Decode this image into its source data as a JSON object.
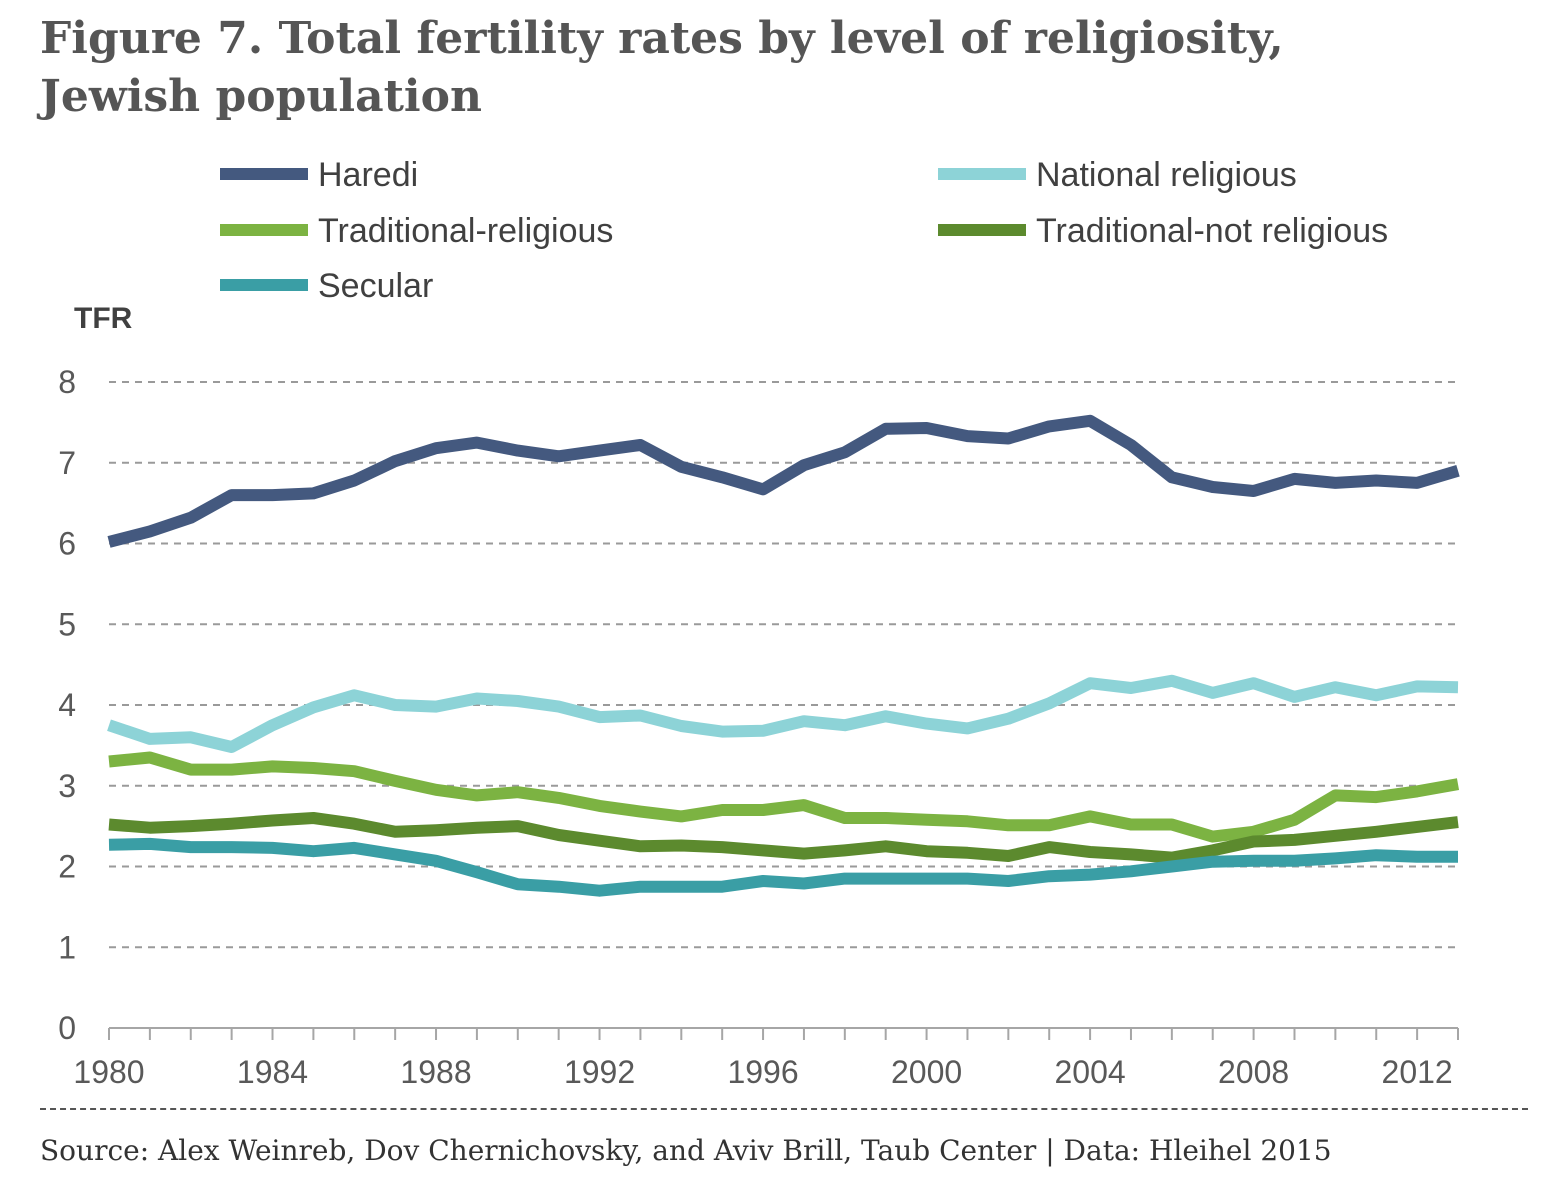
{
  "header": {
    "title_line1": "Figure 7. Total fertility rates by level of religiosity,",
    "title_line2": "Jewish population"
  },
  "footer": {
    "source": "Source: Alex Weinreb, Dov Chernichovsky, and Aviv Brill, Taub Center | Data: Hleihel 2015"
  },
  "chart_data": {
    "type": "line",
    "title": "Figure 7. Total fertility rates by level of religiosity, Jewish population",
    "ylabel": "TFR",
    "xlabel": "",
    "ylim": [
      0,
      8
    ],
    "xlim": [
      1980,
      2013
    ],
    "yticks": [
      0,
      1,
      2,
      3,
      4,
      5,
      6,
      7,
      8
    ],
    "xticks": [
      1980,
      1984,
      1988,
      1992,
      1996,
      2000,
      2004,
      2008,
      2012
    ],
    "grid": "horizontal dashed",
    "legend_position": "top",
    "x": [
      1980,
      1981,
      1982,
      1983,
      1984,
      1985,
      1986,
      1987,
      1988,
      1989,
      1990,
      1991,
      1992,
      1993,
      1994,
      1995,
      1996,
      1997,
      1998,
      1999,
      2000,
      2001,
      2002,
      2003,
      2004,
      2005,
      2006,
      2007,
      2008,
      2009,
      2010,
      2011,
      2012,
      2013
    ],
    "series": [
      {
        "name": "Haredi",
        "color": "#44597f",
        "values": [
          6.02,
          6.15,
          6.32,
          6.6,
          6.6,
          6.62,
          6.78,
          7.02,
          7.18,
          7.25,
          7.15,
          7.08,
          7.15,
          7.22,
          6.95,
          6.82,
          6.67,
          6.97,
          7.13,
          7.42,
          7.43,
          7.33,
          7.3,
          7.45,
          7.52,
          7.22,
          6.82,
          6.7,
          6.65,
          6.8,
          6.75,
          6.78,
          6.75,
          6.9
        ]
      },
      {
        "name": "National religious",
        "color": "#8dd3d7",
        "values": [
          3.75,
          3.58,
          3.6,
          3.48,
          3.75,
          3.97,
          4.12,
          4.0,
          3.98,
          4.08,
          4.05,
          3.98,
          3.85,
          3.87,
          3.74,
          3.67,
          3.68,
          3.8,
          3.75,
          3.86,
          3.77,
          3.71,
          3.83,
          4.02,
          4.27,
          4.21,
          4.3,
          4.15,
          4.27,
          4.1,
          4.22,
          4.12,
          4.23,
          4.22
        ]
      },
      {
        "name": "Traditional-religious",
        "color": "#7cb342",
        "values": [
          3.3,
          3.35,
          3.2,
          3.2,
          3.24,
          3.22,
          3.18,
          3.06,
          2.95,
          2.88,
          2.92,
          2.85,
          2.75,
          2.68,
          2.62,
          2.7,
          2.7,
          2.76,
          2.6,
          2.6,
          2.58,
          2.56,
          2.51,
          2.51,
          2.62,
          2.52,
          2.52,
          2.37,
          2.43,
          2.58,
          2.88,
          2.86,
          2.93,
          3.02
        ]
      },
      {
        "name": "Traditional-not religious",
        "color": "#5c8a2e",
        "values": [
          2.52,
          2.48,
          2.5,
          2.53,
          2.57,
          2.6,
          2.53,
          2.43,
          2.45,
          2.48,
          2.5,
          2.39,
          2.32,
          2.25,
          2.26,
          2.24,
          2.2,
          2.16,
          2.2,
          2.25,
          2.19,
          2.17,
          2.13,
          2.24,
          2.18,
          2.15,
          2.11,
          2.2,
          2.31,
          2.33,
          2.38,
          2.43,
          2.49,
          2.55
        ]
      },
      {
        "name": "Secular",
        "color": "#3a9ea5",
        "values": [
          2.27,
          2.28,
          2.24,
          2.24,
          2.23,
          2.19,
          2.23,
          2.15,
          2.07,
          1.93,
          1.78,
          1.75,
          1.7,
          1.75,
          1.75,
          1.75,
          1.82,
          1.79,
          1.85,
          1.85,
          1.85,
          1.85,
          1.82,
          1.88,
          1.9,
          1.94,
          2.0,
          2.06,
          2.07,
          2.07,
          2.1,
          2.14,
          2.12,
          2.12
        ]
      }
    ]
  }
}
